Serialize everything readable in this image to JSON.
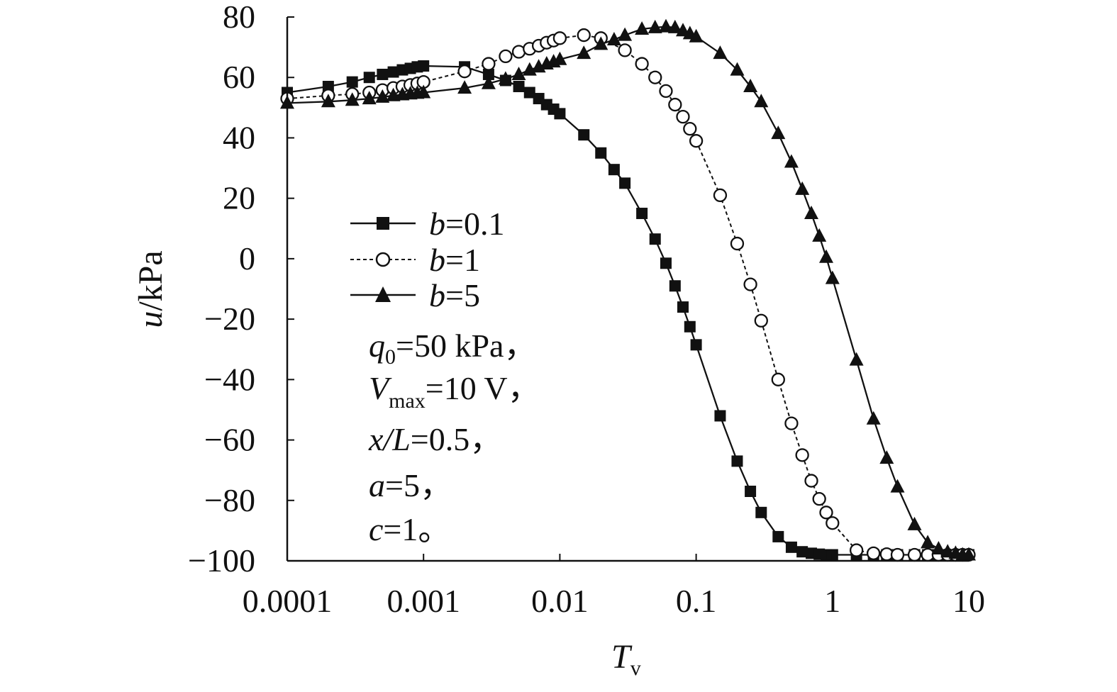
{
  "chart_data": {
    "type": "line",
    "xscale": "log",
    "xlim": [
      0.0001,
      10
    ],
    "ylim": [
      -100,
      80
    ],
    "xticks": [
      0.0001,
      0.001,
      0.01,
      0.1,
      1,
      10
    ],
    "xtick_labels": [
      "0.0001",
      "0.001",
      "0.01",
      "0.1",
      "1",
      "10"
    ],
    "yticks": [
      80,
      60,
      40,
      20,
      0,
      -20,
      -40,
      -60,
      -80,
      -100
    ],
    "ytick_labels": [
      "80",
      "60",
      "40",
      "20",
      "0",
      "−20",
      "−40",
      "−60",
      "−80",
      "−100"
    ],
    "xlabel": {
      "main": "T",
      "sub": "v"
    },
    "ylabel": {
      "italic": "u",
      "rest": "/kPa"
    },
    "grid": false,
    "legend_position": "center-left",
    "series": [
      {
        "name": "b=0.1",
        "legend_italic": "b",
        "legend_rest": "=0.1",
        "marker": "square-filled",
        "line": "solid",
        "x": [
          0.0001,
          0.0002,
          0.0003,
          0.0004,
          0.0005,
          0.0006,
          0.0007,
          0.0008,
          0.0009,
          0.001,
          0.002,
          0.003,
          0.004,
          0.005,
          0.006,
          0.007,
          0.008,
          0.009,
          0.01,
          0.015,
          0.02,
          0.025,
          0.03,
          0.04,
          0.05,
          0.06,
          0.07,
          0.08,
          0.09,
          0.1,
          0.15,
          0.2,
          0.25,
          0.3,
          0.4,
          0.5,
          0.6,
          0.7,
          0.8,
          0.9,
          1,
          1.5,
          2,
          2.5,
          3,
          4,
          5,
          6,
          7,
          8,
          9,
          10
        ],
        "y": [
          55,
          57,
          58.5,
          60,
          61,
          61.8,
          62.5,
          63,
          63.5,
          63.8,
          63.5,
          61,
          59,
          57,
          55,
          53,
          51,
          49.5,
          48,
          41,
          35,
          29.5,
          25,
          15,
          6.5,
          -1.5,
          -9,
          -16,
          -22.5,
          -28.5,
          -52,
          -67,
          -77,
          -84,
          -92,
          -95.5,
          -97,
          -97.5,
          -97.8,
          -98,
          -98,
          -98,
          -98,
          -98,
          -98,
          -98,
          -98,
          -98,
          -98,
          -98,
          -98,
          -98
        ]
      },
      {
        "name": "b=1",
        "legend_italic": "b",
        "legend_rest": "=1",
        "marker": "circle-open",
        "line": "dashed",
        "x": [
          0.0001,
          0.0002,
          0.0003,
          0.0004,
          0.0005,
          0.0006,
          0.0007,
          0.0008,
          0.0009,
          0.001,
          0.002,
          0.003,
          0.004,
          0.005,
          0.006,
          0.007,
          0.008,
          0.009,
          0.01,
          0.015,
          0.02,
          0.03,
          0.04,
          0.05,
          0.06,
          0.07,
          0.08,
          0.09,
          0.1,
          0.15,
          0.2,
          0.25,
          0.3,
          0.4,
          0.5,
          0.6,
          0.7,
          0.8,
          0.9,
          1,
          1.5,
          2,
          2.5,
          3,
          4,
          5,
          6,
          7,
          8,
          9,
          10
        ],
        "y": [
          53,
          54,
          54.5,
          55,
          55.8,
          56.5,
          57,
          57.5,
          58,
          58.5,
          62,
          64.5,
          67,
          68.5,
          69.5,
          70.5,
          71.5,
          72.2,
          73,
          74,
          73,
          69,
          64.5,
          60,
          55.5,
          51,
          47,
          43,
          39,
          21,
          5,
          -8.5,
          -20.5,
          -40,
          -54.5,
          -65,
          -73.5,
          -79.5,
          -84,
          -87.5,
          -96.5,
          -97.5,
          -97.8,
          -98,
          -98,
          -98,
          -98,
          -98,
          -98,
          -98,
          -98
        ]
      },
      {
        "name": "b=5",
        "legend_italic": "b",
        "legend_rest": "=5",
        "marker": "triangle-filled",
        "line": "solid",
        "x": [
          0.0001,
          0.0002,
          0.0003,
          0.0004,
          0.0005,
          0.0006,
          0.0007,
          0.0008,
          0.0009,
          0.001,
          0.002,
          0.003,
          0.004,
          0.005,
          0.006,
          0.007,
          0.008,
          0.009,
          0.01,
          0.015,
          0.02,
          0.025,
          0.03,
          0.04,
          0.05,
          0.06,
          0.07,
          0.08,
          0.09,
          0.1,
          0.15,
          0.2,
          0.25,
          0.3,
          0.4,
          0.5,
          0.6,
          0.7,
          0.8,
          0.9,
          1,
          1.5,
          2,
          2.5,
          3,
          4,
          5,
          6,
          7,
          8,
          9,
          10
        ],
        "y": [
          51.5,
          52,
          52.5,
          53,
          53.5,
          54,
          54.3,
          54.6,
          54.8,
          55,
          56.5,
          58,
          59.5,
          61,
          62.5,
          63.5,
          64.5,
          65.2,
          66,
          68,
          71,
          72.5,
          74,
          76,
          76.5,
          76.8,
          76.5,
          75.5,
          74.5,
          73.5,
          68,
          62.5,
          57,
          52,
          41.5,
          32,
          23,
          15,
          7.5,
          0.5,
          -6.5,
          -33.5,
          -53,
          -66,
          -75.5,
          -88,
          -94,
          -96,
          -97,
          -97.5,
          -98,
          -98
        ]
      }
    ],
    "annotations": [
      {
        "italic": "q",
        "sub": "0",
        "rest": "=50 kPa，"
      },
      {
        "italic": "V",
        "sub": "max",
        "rest": "=10 V，"
      },
      {
        "italic": "x/L",
        "sub": "",
        "rest": "=0.5，"
      },
      {
        "italic": "a",
        "sub": "",
        "rest": "=5，"
      },
      {
        "italic": "c",
        "sub": "",
        "rest": "=1。"
      }
    ]
  }
}
